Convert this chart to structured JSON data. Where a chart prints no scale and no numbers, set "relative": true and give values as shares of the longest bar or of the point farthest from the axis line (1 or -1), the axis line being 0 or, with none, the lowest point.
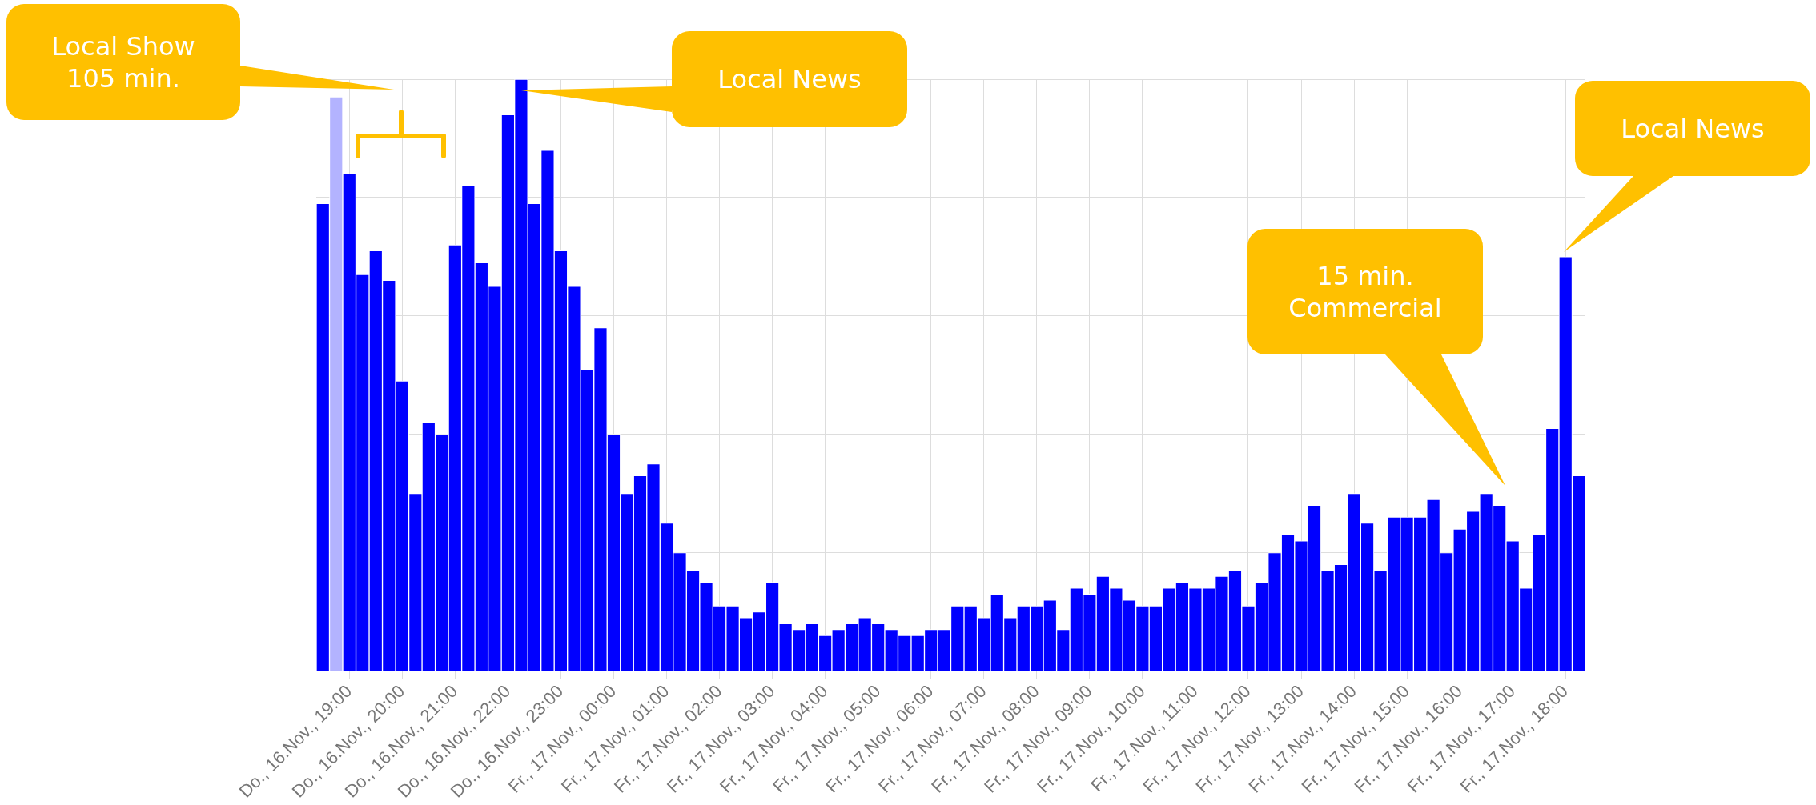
{
  "chart_data": {
    "type": "bar",
    "relative": true,
    "grid": true,
    "categories": [
      null,
      null,
      "Do., 16.Nov., 19:00",
      null,
      null,
      null,
      "Do., 16.Nov., 20:00",
      null,
      null,
      null,
      "Do., 16.Nov., 21:00",
      null,
      null,
      null,
      "Do., 16.Nov., 22:00",
      null,
      null,
      null,
      "Do., 16.Nov., 23:00",
      null,
      null,
      null,
      "Fr., 17.Nov., 00:00",
      null,
      null,
      null,
      "Fr., 17.Nov., 01:00",
      null,
      null,
      null,
      "Fr., 17.Nov., 02:00",
      null,
      null,
      null,
      "Fr., 17.Nov., 03:00",
      null,
      null,
      null,
      "Fr., 17.Nov., 04:00",
      null,
      null,
      null,
      "Fr., 17.Nov., 05:00",
      null,
      null,
      null,
      "Fr., 17.Nov., 06:00",
      null,
      null,
      null,
      "Fr., 17.Nov., 07:00",
      null,
      null,
      null,
      "Fr., 17.Nov., 08:00",
      null,
      null,
      null,
      "Fr., 17.Nov., 09:00",
      null,
      null,
      null,
      "Fr., 17.Nov., 10:00",
      null,
      null,
      null,
      "Fr., 17.Nov., 11:00",
      null,
      null,
      null,
      "Fr., 17.Nov., 12:00",
      null,
      null,
      null,
      "Fr., 17.Nov., 13:00",
      null,
      null,
      null,
      "Fr., 17.Nov., 14:00",
      null,
      null,
      null,
      "Fr., 17.Nov., 15:00",
      null,
      null,
      null,
      "Fr., 17.Nov., 16:00",
      null,
      null,
      null,
      "Fr., 17.Nov., 17:00",
      null,
      null,
      null,
      "Fr., 17.Nov., 18:00",
      null
    ],
    "values": [
      0.79,
      0.97,
      0.84,
      0.67,
      0.71,
      0.66,
      0.49,
      0.3,
      0.42,
      0.4,
      0.72,
      0.82,
      0.69,
      0.65,
      0.94,
      1,
      0.79,
      0.88,
      0.71,
      0.65,
      0.51,
      0.58,
      0.4,
      0.3,
      0.33,
      0.35,
      0.25,
      0.2,
      0.17,
      0.15,
      0.11,
      0.11,
      0.09,
      0.1,
      0.15,
      0.08,
      0.07,
      0.08,
      0.06,
      0.07,
      0.08,
      0.09,
      0.08,
      0.07,
      0.06,
      0.06,
      0.07,
      0.07,
      0.11,
      0.11,
      0.09,
      0.13,
      0.09,
      0.11,
      0.11,
      0.12,
      0.07,
      0.14,
      0.13,
      0.16,
      0.14,
      0.12,
      0.11,
      0.11,
      0.14,
      0.15,
      0.14,
      0.14,
      0.16,
      0.17,
      0.11,
      0.15,
      0.2,
      0.23,
      0.22,
      0.28,
      0.17,
      0.18,
      0.3,
      0.25,
      0.17,
      0.26,
      0.26,
      0.26,
      0.29,
      0.2,
      0.24,
      0.27,
      0.3,
      0.28,
      0.22,
      0.14,
      0.23,
      0.41,
      0.7,
      0.33
    ],
    "colors": [
      "#0000ff",
      "#b3b3ff",
      "#0000ff",
      "#0000ff",
      "#0000ff",
      "#0000ff",
      "#0000ff",
      "#0000ff",
      "#0000ff",
      "#0000ff",
      "#0000ff",
      "#0000ff",
      "#0000ff",
      "#0000ff",
      "#0000ff",
      "#0000ff",
      "#0000ff",
      "#0000ff",
      "#0000ff",
      "#0000ff",
      "#0000ff",
      "#0000ff",
      "#0000ff",
      "#0000ff",
      "#0000ff",
      "#0000ff",
      "#0000ff",
      "#0000ff",
      "#0000ff",
      "#0000ff",
      "#0000ff",
      "#0000ff",
      "#0000ff",
      "#0000ff",
      "#0000ff",
      "#0000ff",
      "#0000ff",
      "#0000ff",
      "#0000ff",
      "#0000ff",
      "#0000ff",
      "#0000ff",
      "#0000ff",
      "#0000ff",
      "#0000ff",
      "#0000ff",
      "#0000ff",
      "#0000ff",
      "#0000ff",
      "#0000ff",
      "#0000ff",
      "#0000ff",
      "#0000ff",
      "#0000ff",
      "#0000ff",
      "#0000ff",
      "#0000ff",
      "#0000ff",
      "#0000ff",
      "#0000ff",
      "#0000ff",
      "#0000ff",
      "#0000ff",
      "#0000ff",
      "#0000ff",
      "#0000ff",
      "#0000ff",
      "#0000ff",
      "#0000ff",
      "#0000ff",
      "#0000ff",
      "#0000ff",
      "#0000ff",
      "#0000ff",
      "#0000ff",
      "#0000ff",
      "#0000ff",
      "#0000ff",
      "#0000ff",
      "#0000ff",
      "#0000ff",
      "#0000ff",
      "#0000ff",
      "#0000ff",
      "#0000ff",
      "#0000ff",
      "#0000ff",
      "#0000ff",
      "#0000ff",
      "#0000ff",
      "#0000ff",
      "#0000ff",
      "#0000ff",
      "#0000ff",
      "#0000ff",
      "#0000ff"
    ],
    "annotations": [
      "Local Show 105 min.",
      "Local News",
      "Local News",
      "15 min. Commercial"
    ]
  }
}
